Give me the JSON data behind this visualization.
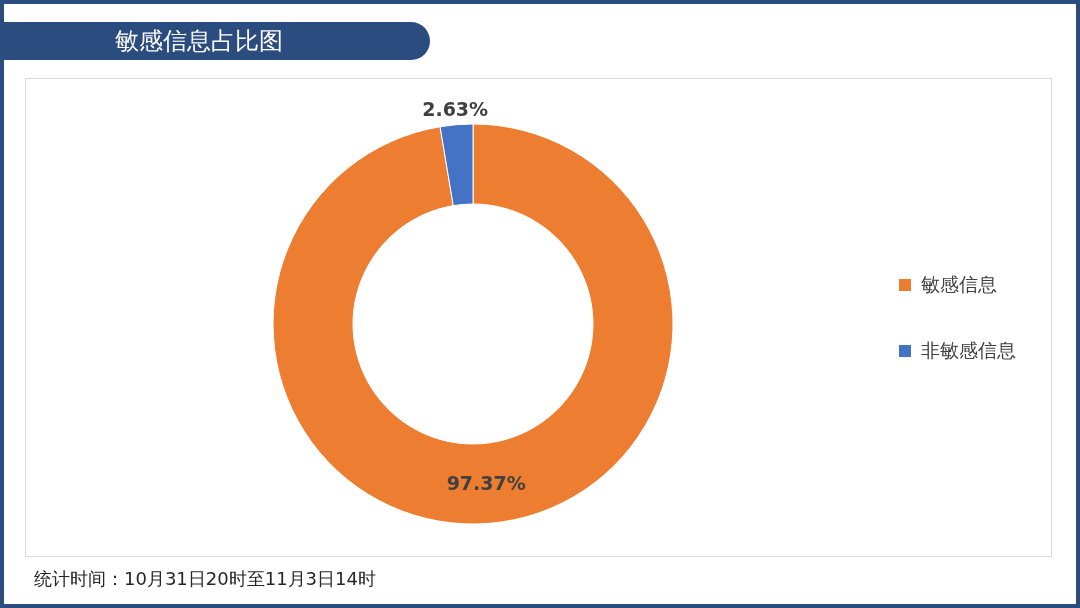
{
  "chart_data": {
    "type": "donut",
    "title": "敏感信息占比图",
    "categories": [
      "敏感信息",
      "非敏感信息"
    ],
    "values": [
      97.37,
      2.63
    ],
    "colors": [
      "#ed7d31",
      "#4472c4"
    ],
    "value_labels": [
      "97.37%",
      "2.63%"
    ],
    "legend": "right",
    "annotations": [
      "统计时间：10月31日20时至11月3日14时"
    ]
  }
}
